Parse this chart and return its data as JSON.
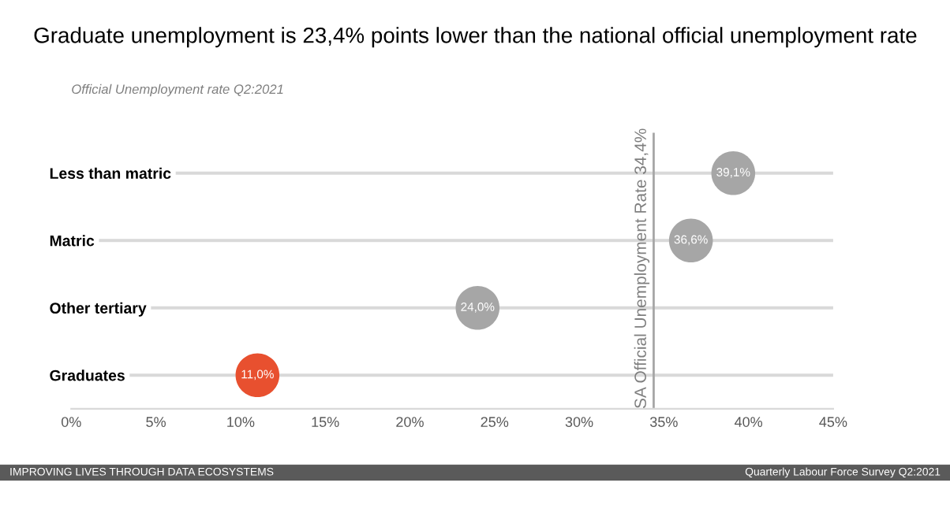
{
  "chart_data": {
    "type": "scatter",
    "orientation": "horizontal",
    "title": "Graduate unemployment is 23,4% points lower than the national official unemployment rate",
    "subtitle": "Official Unemployment rate Q2:2021",
    "categories": [
      "Less than matric",
      "Matric",
      "Other tertiary",
      "Graduates"
    ],
    "values": [
      39.1,
      36.6,
      24.0,
      11.0
    ],
    "colors": [
      "#a6a6a6",
      "#a6a6a6",
      "#a6a6a6",
      "#e8502f"
    ],
    "value_labels": [
      "39,1%",
      "36,6%",
      "24,0%",
      "11,0%"
    ],
    "xlim": [
      0,
      45
    ],
    "xticks": [
      {
        "value": 0,
        "label": "0%"
      },
      {
        "value": 5,
        "label": "5%"
      },
      {
        "value": 10,
        "label": "10%"
      },
      {
        "value": 15,
        "label": "15%"
      },
      {
        "value": 20,
        "label": "20%"
      },
      {
        "value": 25,
        "label": "25%"
      },
      {
        "value": 30,
        "label": "30%"
      },
      {
        "value": 35,
        "label": "35%"
      },
      {
        "value": 40,
        "label": "40%"
      },
      {
        "value": 45,
        "label": "45%"
      }
    ],
    "ref_lines": [
      {
        "axis": "x",
        "value": 34.4,
        "label": "SA Official Unemployment Rate 34,4%",
        "color": "#a6a6a6"
      }
    ],
    "grid": "y",
    "marker": "circle",
    "legend": false,
    "annotations": [
      "IMPROVING LIVES THROUGH DATA ECOSYSTEMS",
      "Quarterly Labour Force Survey Q2:2021"
    ]
  }
}
